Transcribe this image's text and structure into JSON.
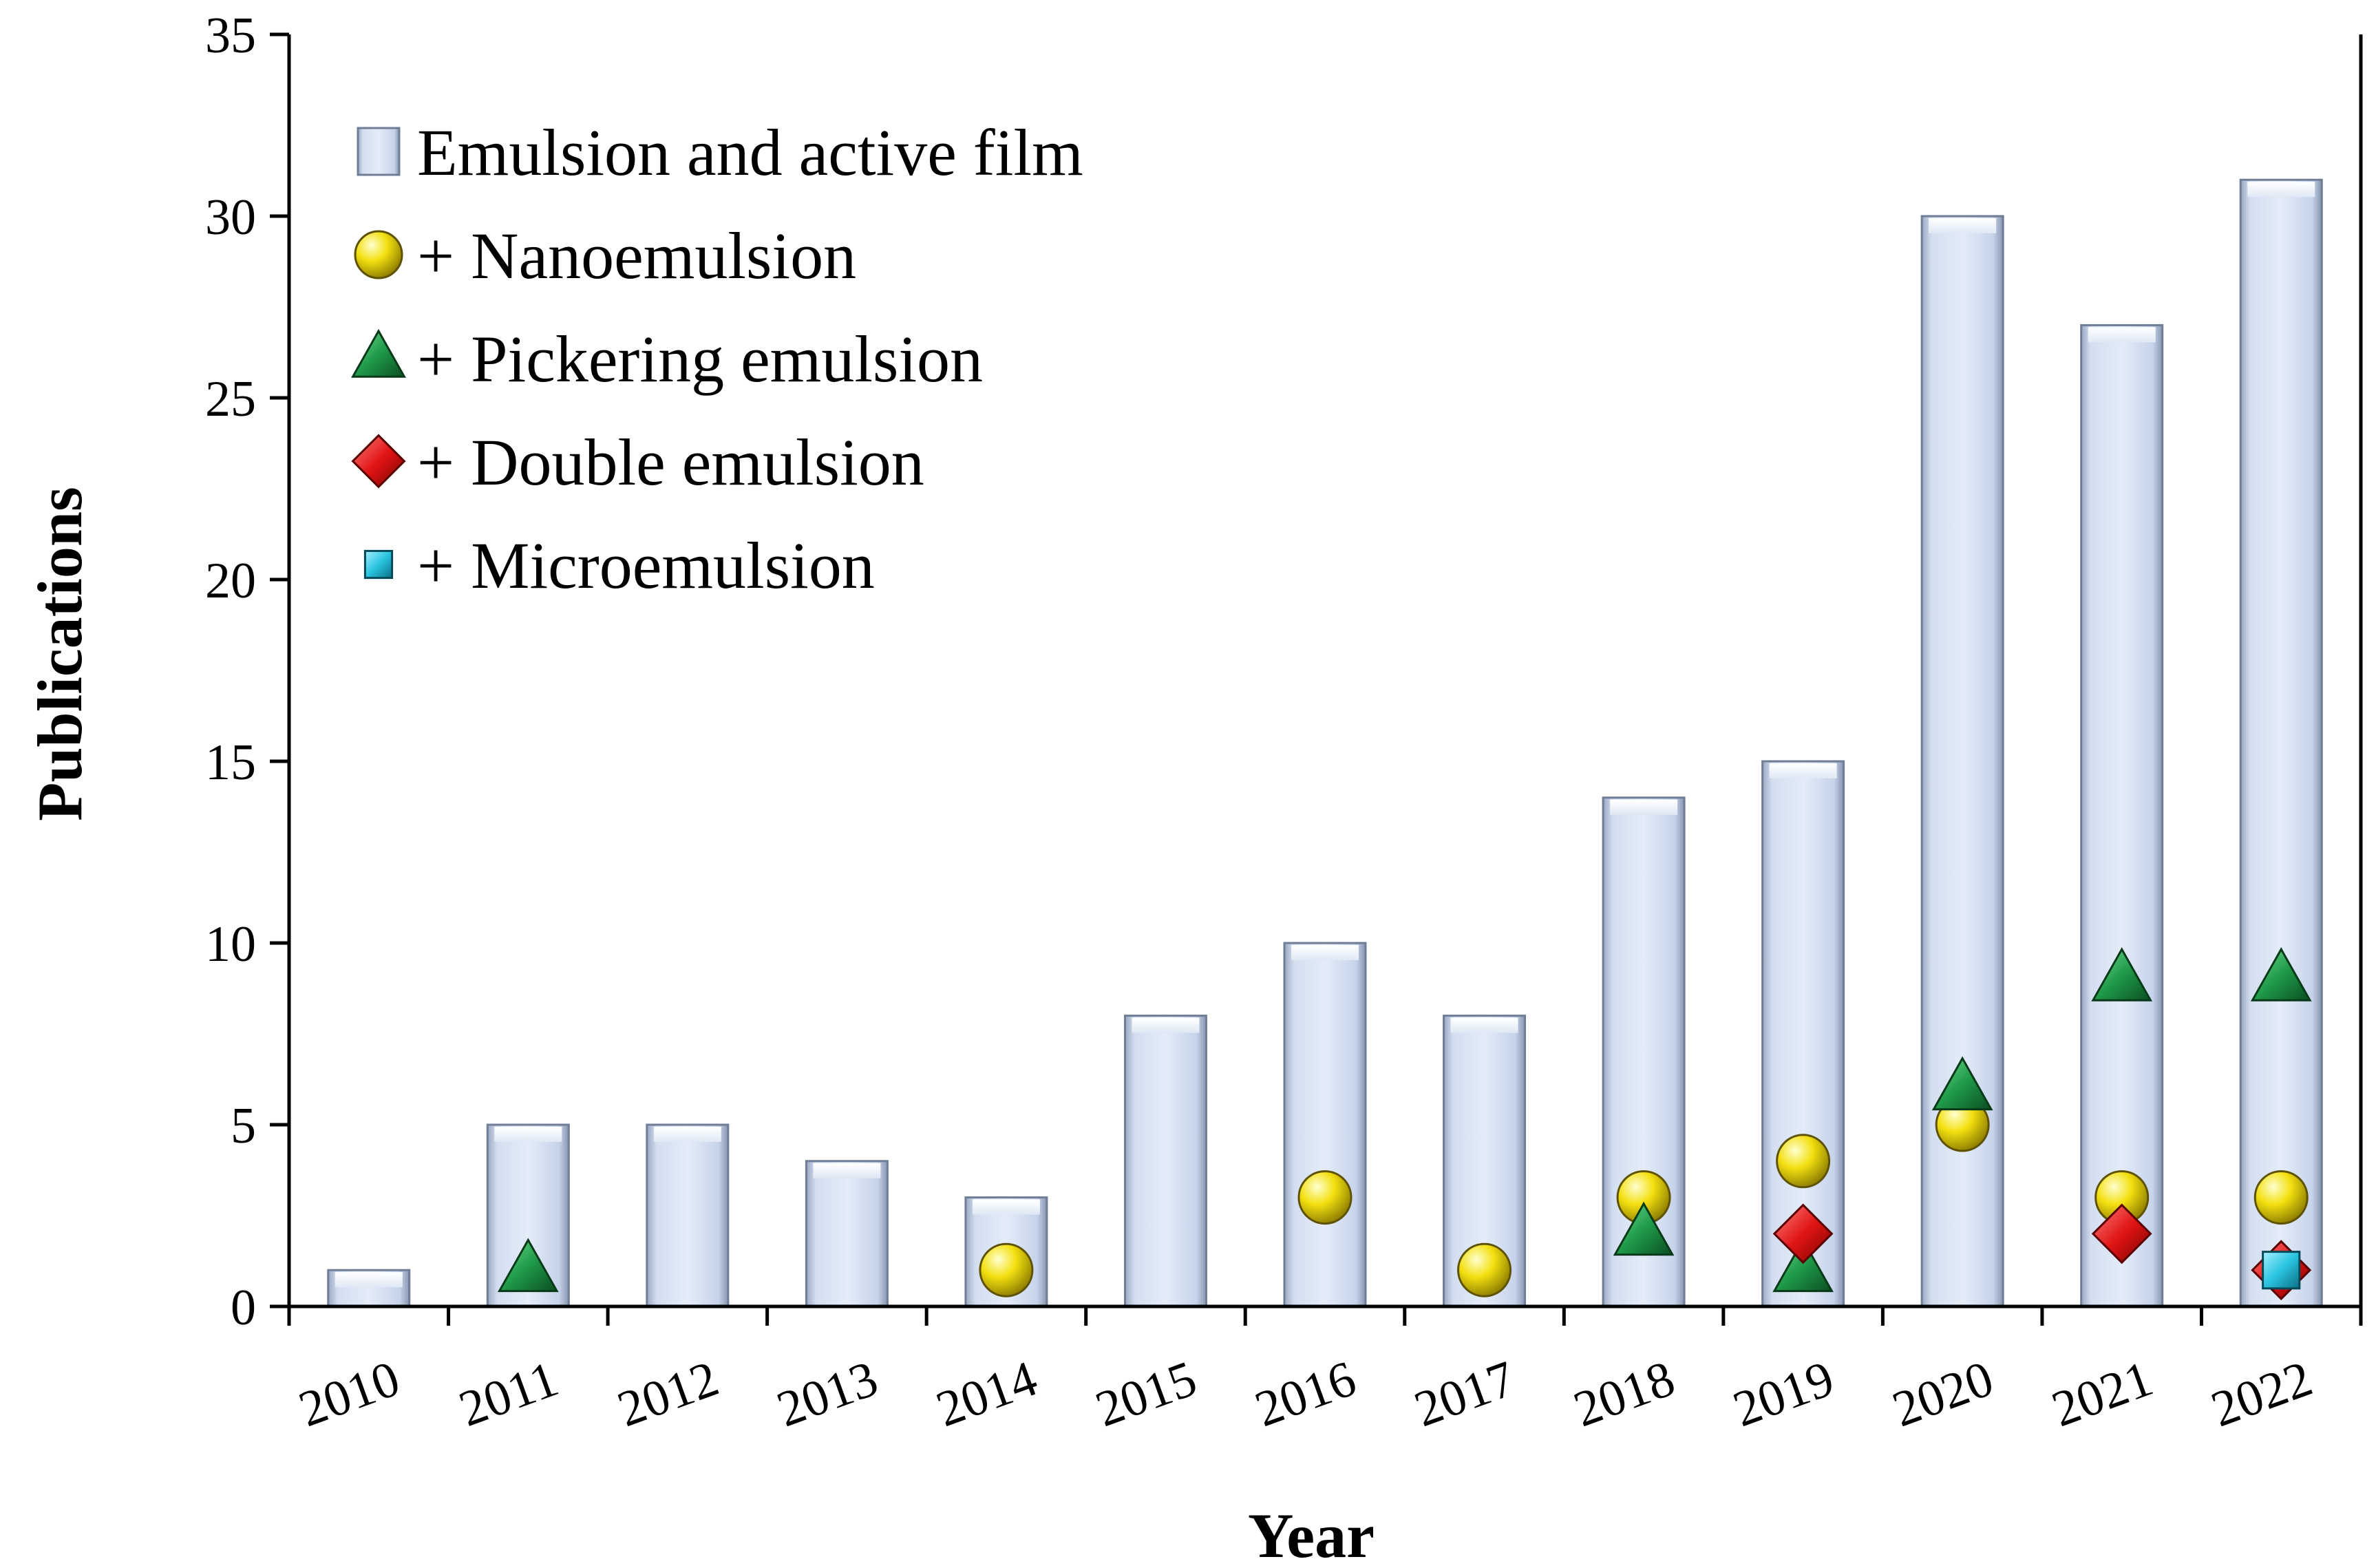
{
  "chart_data": {
    "type": "bar",
    "title": "",
    "xlabel": "Year",
    "ylabel": "Publications",
    "ylim": [
      0,
      35
    ],
    "yticks": [
      0,
      5,
      10,
      15,
      20,
      25,
      30,
      35
    ],
    "categories": [
      "2010",
      "2011",
      "2012",
      "2013",
      "2014",
      "2015",
      "2016",
      "2017",
      "2018",
      "2019",
      "2020",
      "2021",
      "2022"
    ],
    "bars": {
      "name": "Emulsion and active film",
      "values": [
        1,
        5,
        5,
        4,
        3,
        8,
        10,
        8,
        14,
        15,
        30,
        27,
        31
      ],
      "color": "#c9d9ef"
    },
    "markers": [
      {
        "name": "+ Nanoemulsion",
        "shape": "circle",
        "color": "#f3e010",
        "values": [
          null,
          null,
          null,
          null,
          1,
          null,
          3,
          1,
          3,
          4,
          5,
          3,
          3
        ]
      },
      {
        "name": "+ Pickering emulsion",
        "shape": "triangle",
        "color": "#1f9a4a",
        "values": [
          null,
          1,
          null,
          null,
          null,
          null,
          null,
          null,
          2,
          1,
          6,
          9,
          9
        ]
      },
      {
        "name": "+ Double emulsion",
        "shape": "diamond",
        "color": "#e01515",
        "values": [
          null,
          null,
          null,
          null,
          null,
          null,
          null,
          null,
          null,
          2,
          null,
          2,
          1
        ]
      },
      {
        "name": "+ Microemulsion",
        "shape": "square",
        "color": "#29c3e0",
        "values": [
          null,
          null,
          null,
          null,
          null,
          null,
          null,
          null,
          null,
          null,
          null,
          null,
          1
        ]
      }
    ],
    "legend_position": "top-left",
    "grid": false
  }
}
